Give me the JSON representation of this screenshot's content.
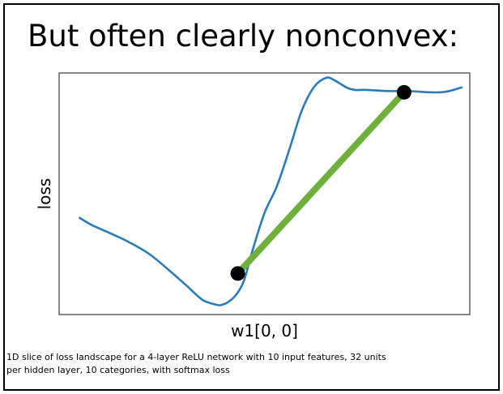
{
  "slide": {
    "title": "But often clearly nonconvex:",
    "caption_lines": [
      "1D slice of loss landscape for a 4-layer ReLU network with 10 input features, 32 units",
      "per hidden layer, 10 categories, with softmax loss"
    ]
  },
  "colors": {
    "curve": "#2b7bb9",
    "chord": "#6fb03c",
    "marker": "#000000",
    "axes": "#3a3a3a"
  },
  "chart_data": {
    "type": "line",
    "xlabel": "w1[0, 0]",
    "ylabel": "loss",
    "xticks": [],
    "yticks": [],
    "grid": false,
    "xlim": [
      0,
      100
    ],
    "ylim": [
      0,
      100
    ],
    "series": [
      {
        "x": [
          5,
          8,
          12,
          17,
          22,
          27,
          31,
          35,
          38.5,
          39.5,
          41,
          43,
          45,
          47,
          50,
          53,
          56,
          59,
          62,
          65,
          67,
          70,
          72,
          75,
          80,
          85,
          90,
          93,
          95,
          98
        ],
        "y": [
          40,
          37,
          34,
          30,
          25,
          18,
          12,
          6,
          4,
          4,
          5,
          8,
          14,
          26,
          42,
          53,
          68,
          84,
          94,
          98,
          97,
          94,
          93,
          93,
          92.5,
          92.5,
          92,
          92,
          92.5,
          94
        ]
      },
      {
        "x": [
          43.5,
          84
        ],
        "y": [
          17,
          92
        ]
      }
    ],
    "points": [
      {
        "x": 43.5,
        "y": 17
      },
      {
        "x": 84,
        "y": 92
      }
    ]
  }
}
